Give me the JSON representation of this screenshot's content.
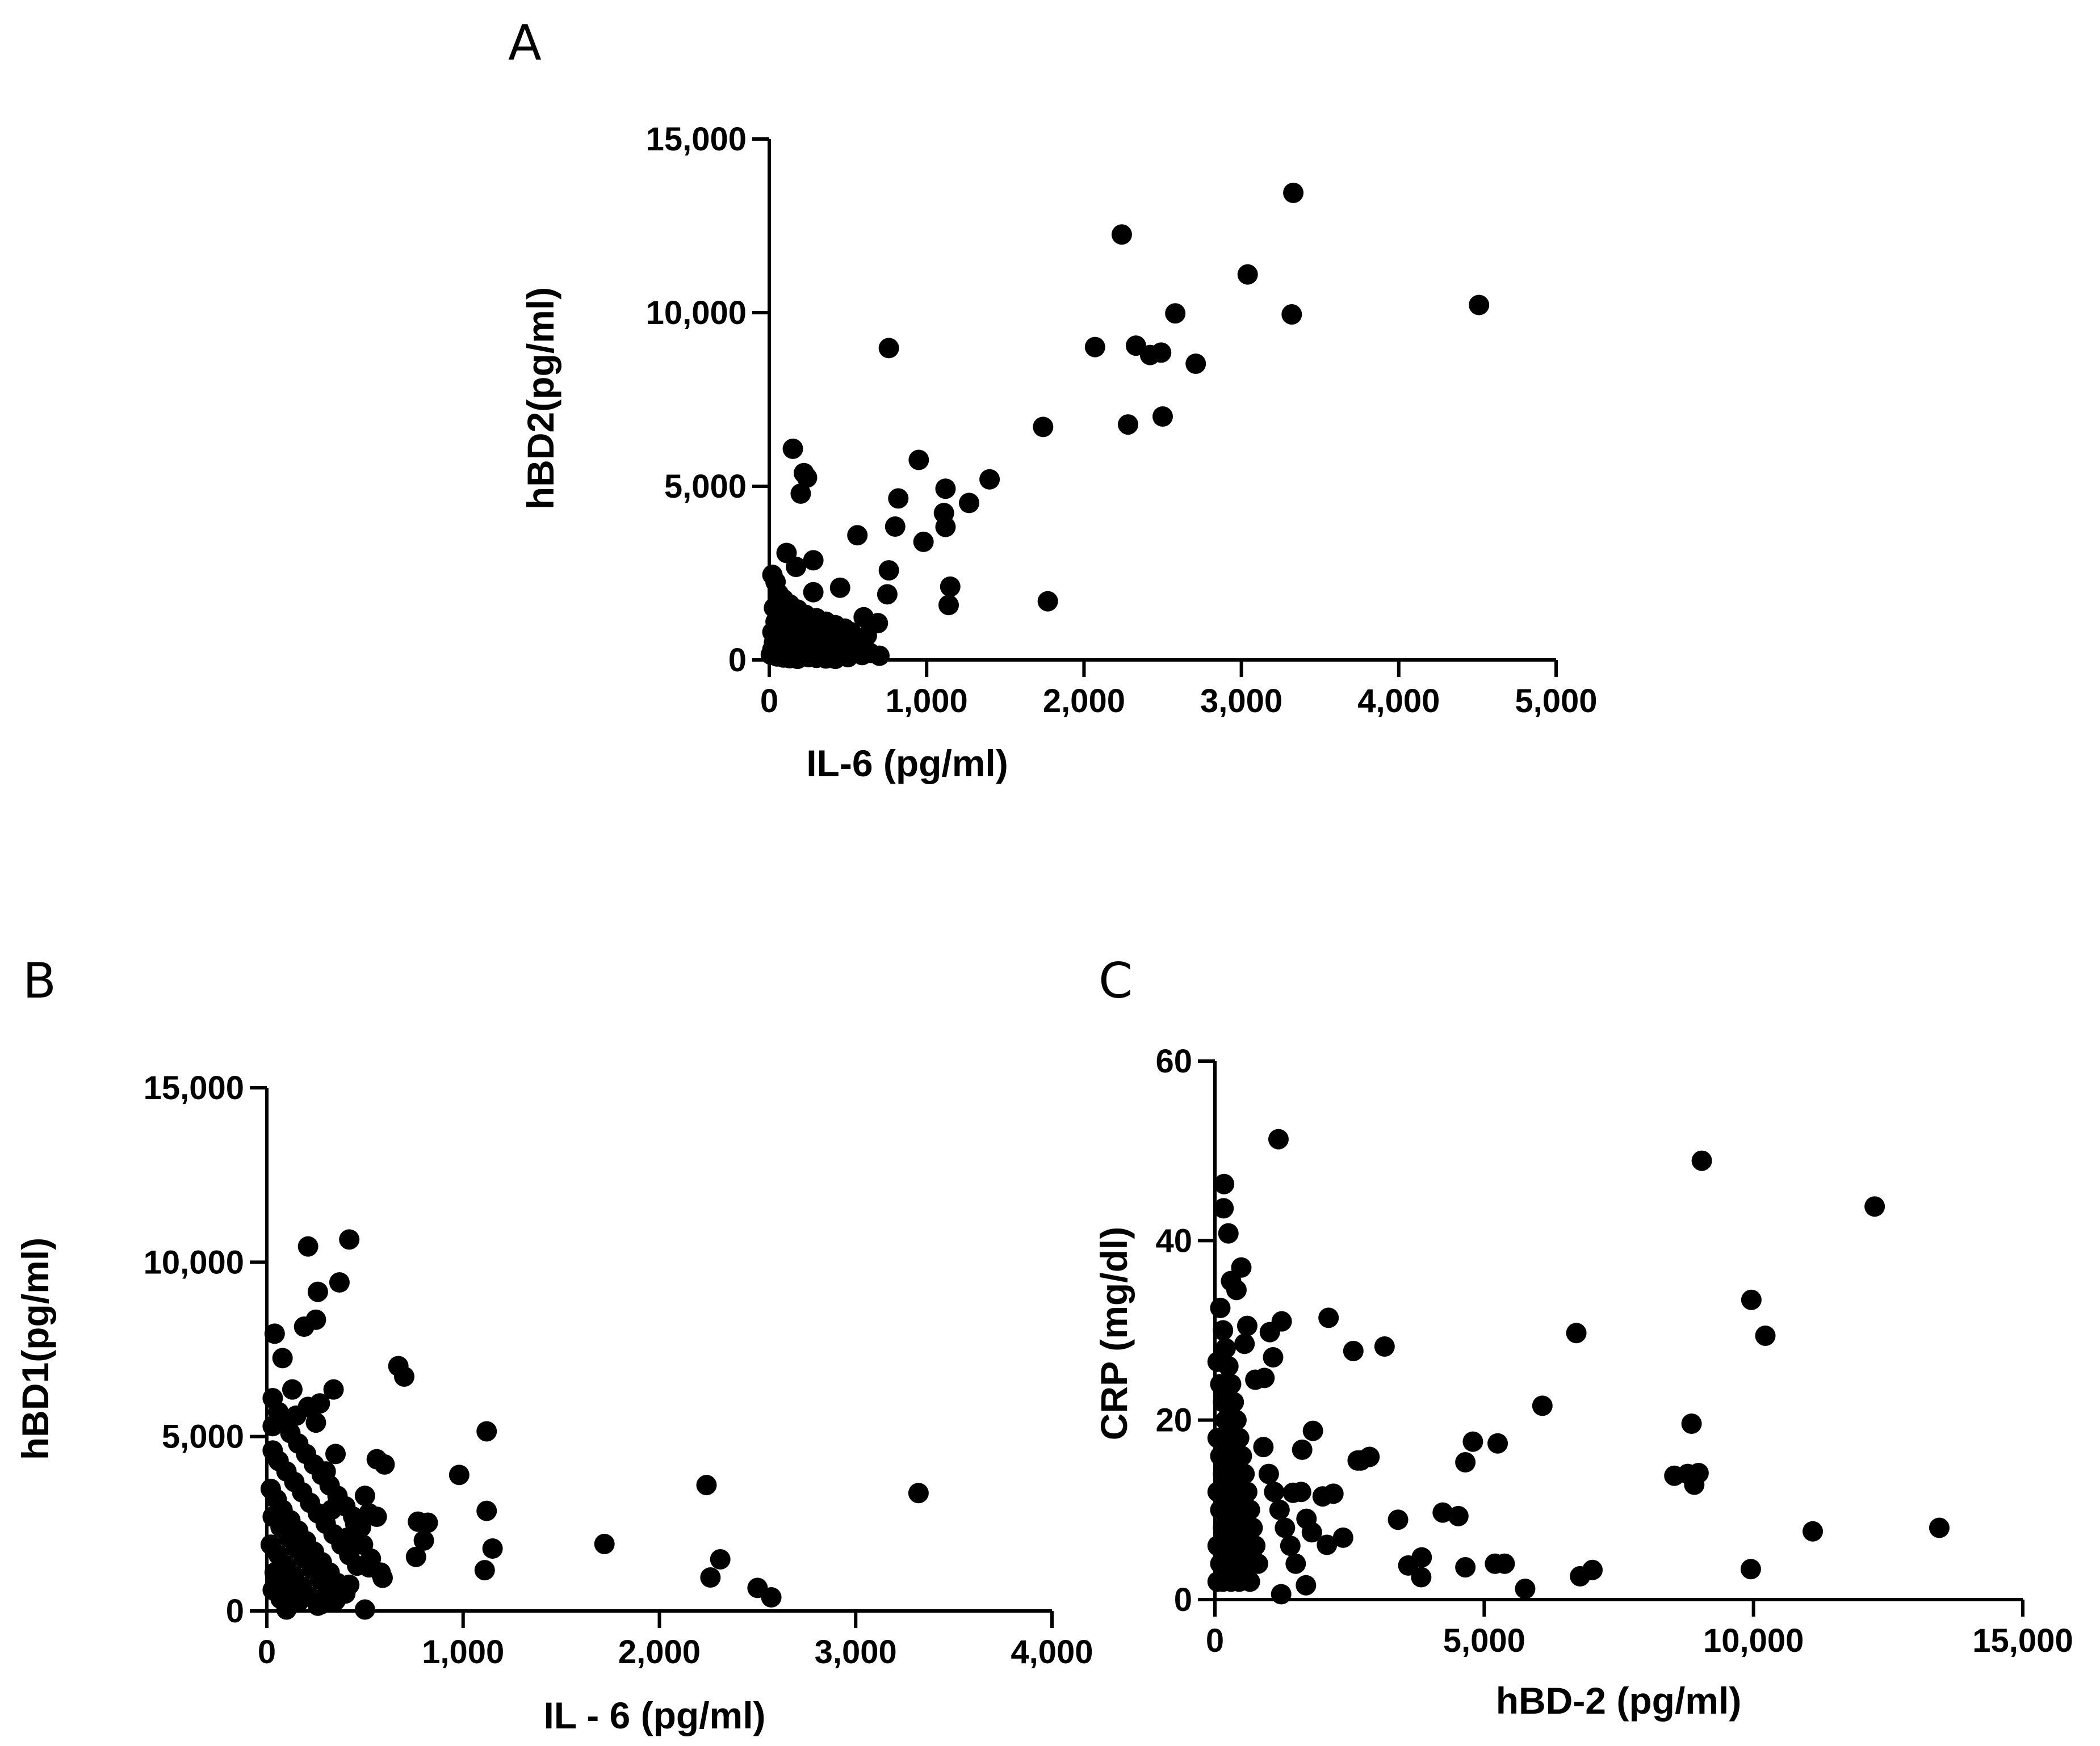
{
  "chart_data": [
    {
      "id": "A",
      "type": "scatter",
      "panel_label": "A",
      "title": "",
      "xlabel": "IL-6 (pg/ml)",
      "ylabel": "hBD2(pg/ml)",
      "xlim": [
        0,
        5000
      ],
      "ylim": [
        0,
        15000
      ],
      "xticks": [
        0,
        1000,
        2000,
        3000,
        4000,
        5000
      ],
      "xtick_labels": [
        "0",
        "1,000",
        "2,000",
        "3,000",
        "4,000",
        "5,000"
      ],
      "yticks": [
        0,
        5000,
        10000,
        15000
      ],
      "ytick_labels": [
        "0",
        "5,000",
        "10,000",
        "15,000"
      ],
      "grid": false,
      "points": [
        [
          3330,
          13450
        ],
        [
          2240,
          12250
        ],
        [
          3040,
          11100
        ],
        [
          3320,
          9950
        ],
        [
          4510,
          10220
        ],
        [
          2580,
          9980
        ],
        [
          760,
          8980
        ],
        [
          2070,
          9010
        ],
        [
          2330,
          9050
        ],
        [
          2420,
          8780
        ],
        [
          2490,
          8850
        ],
        [
          2710,
          8530
        ],
        [
          1740,
          6710
        ],
        [
          2280,
          6780
        ],
        [
          2500,
          7010
        ],
        [
          150,
          6080
        ],
        [
          950,
          5760
        ],
        [
          220,
          5380
        ],
        [
          240,
          5250
        ],
        [
          1400,
          5200
        ],
        [
          1120,
          4930
        ],
        [
          1270,
          4520
        ],
        [
          200,
          4790
        ],
        [
          820,
          4650
        ],
        [
          1110,
          4230
        ],
        [
          800,
          3840
        ],
        [
          1120,
          3830
        ],
        [
          560,
          3590
        ],
        [
          980,
          3400
        ],
        [
          110,
          3080
        ],
        [
          280,
          2870
        ],
        [
          170,
          2680
        ],
        [
          20,
          2450
        ],
        [
          760,
          2580
        ],
        [
          1150,
          2110
        ],
        [
          450,
          2080
        ],
        [
          280,
          1950
        ],
        [
          750,
          1890
        ],
        [
          1770,
          1690
        ],
        [
          1140,
          1580
        ],
        [
          600,
          1230
        ],
        [
          690,
          1060
        ],
        [
          40,
          2250
        ],
        [
          60,
          1900
        ],
        [
          90,
          1750
        ],
        [
          130,
          1600
        ],
        [
          180,
          1450
        ],
        [
          230,
          1300
        ],
        [
          300,
          1200
        ],
        [
          360,
          1100
        ],
        [
          420,
          1000
        ],
        [
          480,
          900
        ],
        [
          520,
          800
        ],
        [
          30,
          1500
        ],
        [
          70,
          1350
        ],
        [
          100,
          1200
        ],
        [
          150,
          1050
        ],
        [
          200,
          950
        ],
        [
          250,
          850
        ],
        [
          310,
          780
        ],
        [
          370,
          700
        ],
        [
          430,
          620
        ],
        [
          490,
          550
        ],
        [
          550,
          480
        ],
        [
          40,
          1100
        ],
        [
          80,
          950
        ],
        [
          120,
          820
        ],
        [
          170,
          720
        ],
        [
          220,
          640
        ],
        [
          270,
          560
        ],
        [
          330,
          500
        ],
        [
          390,
          440
        ],
        [
          450,
          380
        ],
        [
          510,
          330
        ],
        [
          570,
          280
        ],
        [
          20,
          800
        ],
        [
          60,
          700
        ],
        [
          100,
          600
        ],
        [
          140,
          520
        ],
        [
          190,
          460
        ],
        [
          240,
          400
        ],
        [
          290,
          350
        ],
        [
          350,
          300
        ],
        [
          410,
          260
        ],
        [
          470,
          220
        ],
        [
          530,
          180
        ],
        [
          590,
          140
        ],
        [
          640,
          200
        ],
        [
          700,
          120
        ],
        [
          30,
          500
        ],
        [
          70,
          420
        ],
        [
          110,
          360
        ],
        [
          160,
          300
        ],
        [
          210,
          250
        ],
        [
          260,
          210
        ],
        [
          320,
          170
        ],
        [
          380,
          130
        ],
        [
          440,
          100
        ],
        [
          500,
          80
        ],
        [
          20,
          300
        ],
        [
          60,
          240
        ],
        [
          100,
          190
        ],
        [
          150,
          150
        ],
        [
          200,
          110
        ],
        [
          250,
          80
        ],
        [
          300,
          60
        ],
        [
          360,
          40
        ],
        [
          420,
          30
        ],
        [
          10,
          150
        ],
        [
          50,
          100
        ],
        [
          90,
          70
        ],
        [
          130,
          50
        ],
        [
          180,
          30
        ],
        [
          560,
          600
        ],
        [
          620,
          700
        ]
      ]
    },
    {
      "id": "B",
      "type": "scatter",
      "panel_label": "B",
      "title": "",
      "xlabel": "IL - 6 (pg/ml)",
      "ylabel": "hBD1(pg/ml)",
      "xlim": [
        0,
        4000
      ],
      "ylim": [
        0,
        15000
      ],
      "xticks": [
        0,
        1000,
        2000,
        3000,
        4000
      ],
      "xtick_labels": [
        "0",
        "1,000",
        "2,000",
        "3,000",
        "4,000"
      ],
      "yticks": [
        0,
        5000,
        10000,
        15000
      ],
      "ytick_labels": [
        "0",
        "5,000",
        "10,000",
        "15,000"
      ],
      "grid": false,
      "points": [
        [
          420,
          10650
        ],
        [
          210,
          10450
        ],
        [
          260,
          9150
        ],
        [
          370,
          9420
        ],
        [
          250,
          8350
        ],
        [
          190,
          8150
        ],
        [
          40,
          7950
        ],
        [
          80,
          7250
        ],
        [
          670,
          7020
        ],
        [
          700,
          6720
        ],
        [
          130,
          6350
        ],
        [
          340,
          6350
        ],
        [
          270,
          5950
        ],
        [
          210,
          5850
        ],
        [
          1120,
          5150
        ],
        [
          30,
          5300
        ],
        [
          560,
          4350
        ],
        [
          600,
          4200
        ],
        [
          980,
          3900
        ],
        [
          2240,
          3610
        ],
        [
          3320,
          3380
        ],
        [
          500,
          3300
        ],
        [
          770,
          2560
        ],
        [
          820,
          2530
        ],
        [
          1120,
          2870
        ],
        [
          800,
          2020
        ],
        [
          760,
          1550
        ],
        [
          1150,
          1790
        ],
        [
          1720,
          1920
        ],
        [
          2310,
          1480
        ],
        [
          2260,
          960
        ],
        [
          2500,
          660
        ],
        [
          2570,
          390
        ],
        [
          1110,
          1170
        ],
        [
          520,
          1250
        ],
        [
          590,
          950
        ],
        [
          420,
          750
        ],
        [
          500,
          40
        ],
        [
          100,
          40
        ],
        [
          280,
          200
        ],
        [
          30,
          6100
        ],
        [
          60,
          5700
        ],
        [
          90,
          5400
        ],
        [
          120,
          5100
        ],
        [
          160,
          4800
        ],
        [
          200,
          4500
        ],
        [
          240,
          4200
        ],
        [
          280,
          3900
        ],
        [
          320,
          3600
        ],
        [
          360,
          3300
        ],
        [
          400,
          3000
        ],
        [
          440,
          2700
        ],
        [
          480,
          2400
        ],
        [
          30,
          4600
        ],
        [
          60,
          4300
        ],
        [
          100,
          4000
        ],
        [
          140,
          3700
        ],
        [
          180,
          3400
        ],
        [
          220,
          3100
        ],
        [
          260,
          2800
        ],
        [
          300,
          2500
        ],
        [
          340,
          2200
        ],
        [
          380,
          1900
        ],
        [
          420,
          1600
        ],
        [
          460,
          1300
        ],
        [
          20,
          3500
        ],
        [
          50,
          3200
        ],
        [
          80,
          2900
        ],
        [
          120,
          2600
        ],
        [
          160,
          2300
        ],
        [
          200,
          2000
        ],
        [
          240,
          1700
        ],
        [
          280,
          1400
        ],
        [
          320,
          1100
        ],
        [
          360,
          800
        ],
        [
          400,
          500
        ],
        [
          30,
          2700
        ],
        [
          70,
          2400
        ],
        [
          110,
          2100
        ],
        [
          150,
          1800
        ],
        [
          190,
          1500
        ],
        [
          230,
          1200
        ],
        [
          270,
          900
        ],
        [
          310,
          600
        ],
        [
          350,
          300
        ],
        [
          20,
          1900
        ],
        [
          60,
          1600
        ],
        [
          100,
          1300
        ],
        [
          140,
          1000
        ],
        [
          180,
          700
        ],
        [
          220,
          400
        ],
        [
          260,
          150
        ],
        [
          40,
          1100
        ],
        [
          80,
          800
        ],
        [
          120,
          500
        ],
        [
          160,
          250
        ],
        [
          30,
          600
        ],
        [
          70,
          350
        ],
        [
          450,
          2500
        ],
        [
          520,
          2800
        ],
        [
          560,
          2700
        ],
        [
          490,
          1900
        ],
        [
          530,
          1500
        ],
        [
          580,
          1100
        ],
        [
          300,
          4000
        ],
        [
          350,
          4500
        ],
        [
          150,
          5600
        ],
        [
          250,
          5400
        ],
        [
          330,
          2900
        ],
        [
          410,
          2100
        ]
      ]
    },
    {
      "id": "C",
      "type": "scatter",
      "panel_label": "C",
      "title": "",
      "xlabel": "hBD-2 (pg/ml)",
      "ylabel": "CRP (mg/dl)",
      "xlim": [
        0,
        15000
      ],
      "ylim": [
        0,
        60
      ],
      "xticks": [
        0,
        5000,
        10000,
        15000
      ],
      "xtick_labels": [
        "0",
        "5,000",
        "10,000",
        "15,000"
      ],
      "yticks": [
        0,
        20,
        40,
        60
      ],
      "ytick_labels": [
        "0",
        "20",
        "40",
        "60"
      ],
      "grid": false,
      "points": [
        [
          1180,
          51.3
        ],
        [
          9040,
          48.9
        ],
        [
          12250,
          43.8
        ],
        [
          170,
          46.3
        ],
        [
          160,
          43.6
        ],
        [
          250,
          40.8
        ],
        [
          490,
          37.0
        ],
        [
          9960,
          33.4
        ],
        [
          10220,
          29.4
        ],
        [
          6710,
          29.7
        ],
        [
          2110,
          31.4
        ],
        [
          1240,
          31.0
        ],
        [
          3150,
          28.2
        ],
        [
          2570,
          27.7
        ],
        [
          1020,
          29.8
        ],
        [
          1080,
          27.0
        ],
        [
          920,
          24.7
        ],
        [
          6080,
          21.6
        ],
        [
          8850,
          19.6
        ],
        [
          1820,
          18.8
        ],
        [
          4790,
          17.6
        ],
        [
          5250,
          17.4
        ],
        [
          1620,
          16.7
        ],
        [
          2870,
          15.9
        ],
        [
          2650,
          15.5
        ],
        [
          2710,
          15.5
        ],
        [
          4650,
          15.3
        ],
        [
          8530,
          13.8
        ],
        [
          8780,
          14.0
        ],
        [
          8980,
          14.1
        ],
        [
          8900,
          12.8
        ],
        [
          3400,
          8.9
        ],
        [
          4230,
          9.7
        ],
        [
          4520,
          9.3
        ],
        [
          2380,
          6.9
        ],
        [
          2080,
          6.1
        ],
        [
          1450,
          11.9
        ],
        [
          11100,
          7.6
        ],
        [
          13450,
          8.0
        ],
        [
          3590,
          3.8
        ],
        [
          3840,
          4.7
        ],
        [
          3830,
          2.5
        ],
        [
          4650,
          3.6
        ],
        [
          5200,
          4.0
        ],
        [
          5380,
          4.0
        ],
        [
          5760,
          1.2
        ],
        [
          6780,
          2.6
        ],
        [
          7010,
          3.3
        ],
        [
          9950,
          3.4
        ],
        [
          1690,
          1.6
        ],
        [
          1230,
          0.6
        ],
        [
          50,
          2.0
        ],
        [
          100,
          32.5
        ],
        [
          150,
          30.0
        ],
        [
          200,
          28.0
        ],
        [
          250,
          26.0
        ],
        [
          300,
          24.0
        ],
        [
          350,
          22.0
        ],
        [
          400,
          20.0
        ],
        [
          450,
          18.0
        ],
        [
          500,
          16.0
        ],
        [
          550,
          14.0
        ],
        [
          600,
          12.0
        ],
        [
          650,
          10.0
        ],
        [
          700,
          8.0
        ],
        [
          750,
          6.0
        ],
        [
          800,
          4.0
        ],
        [
          50,
          26.5
        ],
        [
          100,
          24.0
        ],
        [
          150,
          22.0
        ],
        [
          200,
          20.0
        ],
        [
          250,
          18.0
        ],
        [
          300,
          16.0
        ],
        [
          350,
          14.0
        ],
        [
          400,
          12.0
        ],
        [
          450,
          10.0
        ],
        [
          500,
          8.0
        ],
        [
          550,
          6.0
        ],
        [
          600,
          4.0
        ],
        [
          650,
          2.0
        ],
        [
          50,
          18.0
        ],
        [
          100,
          16.0
        ],
        [
          150,
          14.0
        ],
        [
          200,
          12.0
        ],
        [
          250,
          10.0
        ],
        [
          300,
          8.0
        ],
        [
          350,
          6.0
        ],
        [
          400,
          4.0
        ],
        [
          450,
          2.0
        ],
        [
          50,
          12.0
        ],
        [
          100,
          10.0
        ],
        [
          150,
          8.0
        ],
        [
          200,
          6.0
        ],
        [
          250,
          4.0
        ],
        [
          300,
          2.0
        ],
        [
          50,
          6.0
        ],
        [
          100,
          4.0
        ],
        [
          150,
          2.0
        ],
        [
          900,
          17.0
        ],
        [
          1000,
          14.0
        ],
        [
          1100,
          12.0
        ],
        [
          1200,
          10.0
        ],
        [
          1300,
          8.0
        ],
        [
          1400,
          6.0
        ],
        [
          1500,
          4.0
        ],
        [
          1600,
          12.0
        ],
        [
          1700,
          9.0
        ],
        [
          1800,
          7.5
        ],
        [
          2000,
          11.5
        ],
        [
          2200,
          11.8
        ],
        [
          600,
          30.5
        ],
        [
          400,
          34.5
        ],
        [
          300,
          35.5
        ],
        [
          550,
          28.5
        ],
        [
          750,
          24.5
        ]
      ]
    }
  ]
}
